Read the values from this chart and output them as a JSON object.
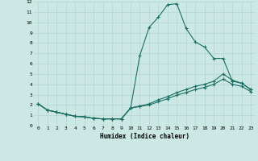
{
  "xlabel": "Humidex (Indice chaleur)",
  "ylabel": "",
  "background_color": "#cce8e4",
  "grid_color": "#b5d5d0",
  "line_color": "#1a6e64",
  "xlim": [
    -0.5,
    23.5
  ],
  "ylim": [
    0,
    12
  ],
  "xticks": [
    0,
    1,
    2,
    3,
    4,
    5,
    6,
    7,
    8,
    9,
    10,
    11,
    12,
    13,
    14,
    15,
    16,
    17,
    18,
    19,
    20,
    21,
    22,
    23
  ],
  "yticks": [
    0,
    1,
    2,
    3,
    4,
    5,
    6,
    7,
    8,
    9,
    10,
    11,
    12
  ],
  "series1_x": [
    0,
    1,
    2,
    3,
    4,
    5,
    6,
    7,
    8,
    9,
    10,
    11,
    12,
    13,
    14,
    15,
    16,
    17,
    18,
    19,
    20,
    21,
    22,
    23
  ],
  "series1_y": [
    2.1,
    1.5,
    1.3,
    1.1,
    0.9,
    0.85,
    0.7,
    0.65,
    0.65,
    0.65,
    1.7,
    6.8,
    9.5,
    10.5,
    11.7,
    11.8,
    9.4,
    8.1,
    7.6,
    6.5,
    6.5,
    4.3,
    4.1,
    3.5
  ],
  "series2_x": [
    0,
    1,
    2,
    3,
    4,
    5,
    6,
    7,
    8,
    9,
    10,
    11,
    12,
    13,
    14,
    15,
    16,
    17,
    18,
    19,
    20,
    21,
    22,
    23
  ],
  "series2_y": [
    2.1,
    1.5,
    1.3,
    1.1,
    0.9,
    0.85,
    0.7,
    0.65,
    0.65,
    0.65,
    1.7,
    1.9,
    2.1,
    2.5,
    2.8,
    3.2,
    3.5,
    3.8,
    4.0,
    4.3,
    5.0,
    4.4,
    4.1,
    3.5
  ],
  "series3_x": [
    0,
    1,
    2,
    3,
    4,
    5,
    6,
    7,
    8,
    9,
    10,
    11,
    12,
    13,
    14,
    15,
    16,
    17,
    18,
    19,
    20,
    21,
    22,
    23
  ],
  "series3_y": [
    2.1,
    1.5,
    1.3,
    1.1,
    0.9,
    0.85,
    0.7,
    0.65,
    0.65,
    0.65,
    1.7,
    1.85,
    2.0,
    2.3,
    2.6,
    2.95,
    3.2,
    3.5,
    3.7,
    4.0,
    4.5,
    4.0,
    3.8,
    3.3
  ]
}
